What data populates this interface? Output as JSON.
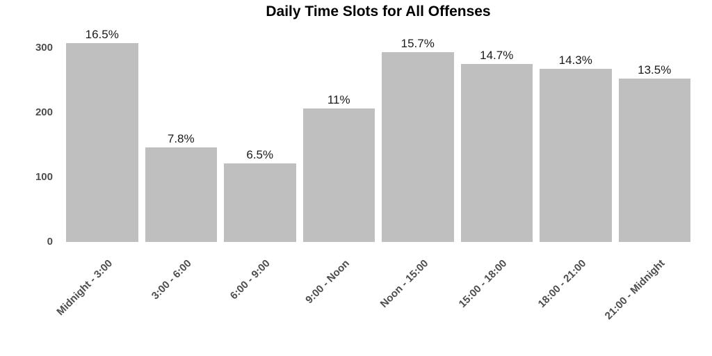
{
  "chart_data": {
    "type": "bar",
    "title": "Daily Time Slots for All Offenses",
    "categories": [
      "Midnight - 3:00",
      "3:00 - 6:00",
      "6:00 - 9:00",
      "9:00 - Noon",
      "Noon - 15:00",
      "15:00 - 18:00",
      "18:00 - 21:00",
      "21:00 - Midnight"
    ],
    "values": [
      308,
      146,
      121,
      206,
      294,
      275,
      268,
      253
    ],
    "bar_value_labels": [
      "16.5%",
      "7.8%",
      "6.5%",
      "11%",
      "15.7%",
      "14.7%",
      "14.3%",
      "13.5%"
    ],
    "xlabel": "",
    "ylabel": "",
    "yticks": [
      0,
      100,
      200,
      300
    ],
    "ylim": [
      0,
      330
    ],
    "grid": "off",
    "legend": "none",
    "bar_color": "#bfbfbf",
    "title_color": "#000000",
    "axis_label_color": "#4d4d4d",
    "value_label_color": "#1a1a1a"
  }
}
